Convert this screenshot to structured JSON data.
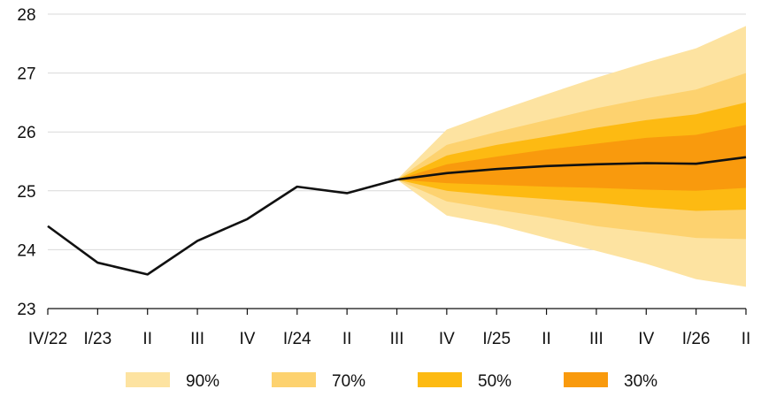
{
  "chart_data": {
    "type": "area",
    "title": "",
    "xlabel": "",
    "ylabel": "",
    "categories": [
      "IV/22",
      "I/23",
      "II",
      "III",
      "IV",
      "I/24",
      "II",
      "III",
      "IV",
      "I/25",
      "II",
      "III",
      "IV",
      "I/26",
      "II"
    ],
    "ylim": [
      23,
      28
    ],
    "yticks": [
      23,
      24,
      25,
      26,
      27,
      28
    ],
    "grid": true,
    "legend_position": "bottom",
    "history": {
      "name": "",
      "values": [
        24.4,
        23.78,
        23.58,
        24.15,
        24.52,
        25.07,
        24.96,
        25.19
      ]
    },
    "projection": {
      "start_index": 7,
      "central": [
        25.19,
        25.3,
        25.37,
        25.42,
        25.45,
        25.47,
        25.46,
        25.57
      ],
      "bands": [
        {
          "name": "90%",
          "color": "#FDE3A1",
          "lower": [
            25.19,
            24.58,
            24.42,
            24.2,
            23.98,
            23.76,
            23.5,
            23.37
          ],
          "upper": [
            25.19,
            26.04,
            26.35,
            26.64,
            26.92,
            27.18,
            27.42,
            27.8
          ]
        },
        {
          "name": "70%",
          "color": "#FDD26F",
          "lower": [
            25.19,
            24.82,
            24.68,
            24.55,
            24.4,
            24.3,
            24.2,
            24.18
          ],
          "upper": [
            25.19,
            25.78,
            26.0,
            26.2,
            26.4,
            26.57,
            26.72,
            27.0
          ]
        },
        {
          "name": "50%",
          "color": "#FDBA12",
          "lower": [
            25.19,
            25.0,
            24.92,
            24.86,
            24.8,
            24.72,
            24.66,
            24.68
          ],
          "upper": [
            25.19,
            25.6,
            25.78,
            25.92,
            26.07,
            26.2,
            26.3,
            26.5
          ]
        },
        {
          "name": "30%",
          "color": "#F99A0D",
          "lower": [
            25.19,
            25.13,
            25.1,
            25.07,
            25.05,
            25.02,
            25.0,
            25.05
          ],
          "upper": [
            25.19,
            25.45,
            25.58,
            25.7,
            25.8,
            25.9,
            25.95,
            26.12
          ]
        }
      ]
    },
    "legend": [
      {
        "label": "90%",
        "color": "#FDE3A1"
      },
      {
        "label": "70%",
        "color": "#FDD26F"
      },
      {
        "label": "50%",
        "color": "#FDBA12"
      },
      {
        "label": "30%",
        "color": "#F99A0D"
      }
    ],
    "grid_color": "#D9D9D9",
    "line_color": "#111111"
  }
}
